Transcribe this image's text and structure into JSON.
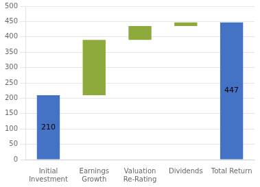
{
  "chart_data": {
    "type": "bar",
    "categories": [
      "Initial\nInvestment",
      "Earnings\nGrowth",
      "Valuation\nRe-Rating",
      "Dividends",
      "Total Return"
    ],
    "values": [
      210,
      180,
      45,
      12,
      447
    ],
    "bottoms": [
      0,
      210,
      390,
      435,
      0
    ],
    "colors": [
      "#4472c4",
      "#8faa3c",
      "#8faa3c",
      "#8faa3c",
      "#4472c4"
    ],
    "data_labels": true,
    "value_labels": [
      "210",
      null,
      null,
      null,
      "447"
    ],
    "ylim": [
      0,
      500
    ],
    "yticks": [
      0,
      50,
      100,
      150,
      200,
      250,
      300,
      350,
      400,
      450,
      500
    ],
    "grid": true
  }
}
